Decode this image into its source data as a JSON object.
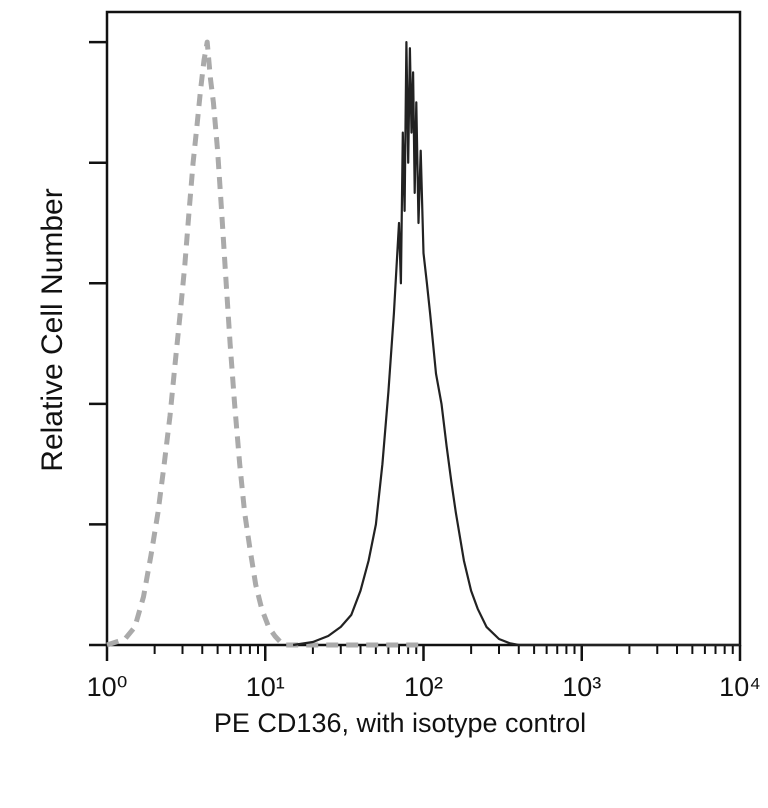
{
  "chart_data": {
    "type": "line",
    "xlabel": "PE CD136, with isotype control",
    "ylabel": "Relative Cell Number",
    "xscale": "log",
    "xlim": [
      1,
      10000
    ],
    "xticks": [
      {
        "value": 1,
        "label": "10⁰"
      },
      {
        "value": 10,
        "label": "10¹"
      },
      {
        "value": 100,
        "label": "10²"
      },
      {
        "value": 1000,
        "label": "10³"
      },
      {
        "value": 10000,
        "label": "10⁴"
      }
    ],
    "xminorticks": [
      2,
      3,
      4,
      5,
      6,
      7,
      8,
      9,
      20,
      30,
      40,
      50,
      60,
      70,
      80,
      90,
      200,
      300,
      400,
      500,
      600,
      700,
      800,
      900,
      2000,
      3000,
      4000,
      5000,
      6000,
      7000,
      8000,
      9000
    ],
    "ylim": [
      0,
      105
    ],
    "yticks": [
      0,
      20,
      40,
      60,
      80,
      100
    ],
    "series": [
      {
        "name": "isotype control",
        "color": "#aaaaaa",
        "dashed": true,
        "x": [
          1.0,
          1.3,
          1.5,
          1.7,
          1.9,
          2.1,
          2.3,
          2.5,
          2.7,
          2.9,
          3.1,
          3.3,
          3.5,
          3.7,
          3.9,
          4.1,
          4.3,
          4.5,
          4.7,
          5.0,
          5.3,
          5.6,
          6.0,
          6.4,
          6.9,
          7.4,
          8.0,
          8.7,
          9.5,
          10.5,
          11.5,
          13,
          30,
          100
        ],
        "values": [
          0,
          1,
          3,
          8,
          15,
          22,
          30,
          38,
          47,
          55,
          63,
          72,
          80,
          86,
          92,
          97,
          100,
          94,
          90,
          82,
          72,
          62,
          50,
          40,
          30,
          22,
          16,
          10,
          6,
          3,
          1.5,
          0,
          0,
          0
        ]
      },
      {
        "name": "PE CD136",
        "color": "#222222",
        "dashed": false,
        "x": [
          15,
          20,
          25,
          30,
          35,
          40,
          45,
          50,
          55,
          60,
          65,
          70,
          72,
          74,
          76,
          78,
          80,
          82,
          84,
          86,
          88,
          90,
          93,
          96,
          100,
          105,
          110,
          120,
          130,
          140,
          150,
          160,
          180,
          200,
          220,
          250,
          300,
          350,
          400,
          10000
        ],
        "values": [
          0,
          0.5,
          1.5,
          3,
          5,
          9,
          14,
          20,
          30,
          42,
          55,
          70,
          60,
          85,
          72,
          100,
          80,
          99,
          85,
          95,
          75,
          90,
          70,
          82,
          65,
          60,
          55,
          45,
          40,
          33,
          27,
          22,
          14,
          9,
          6,
          3,
          1,
          0.3,
          0,
          0
        ]
      }
    ]
  }
}
